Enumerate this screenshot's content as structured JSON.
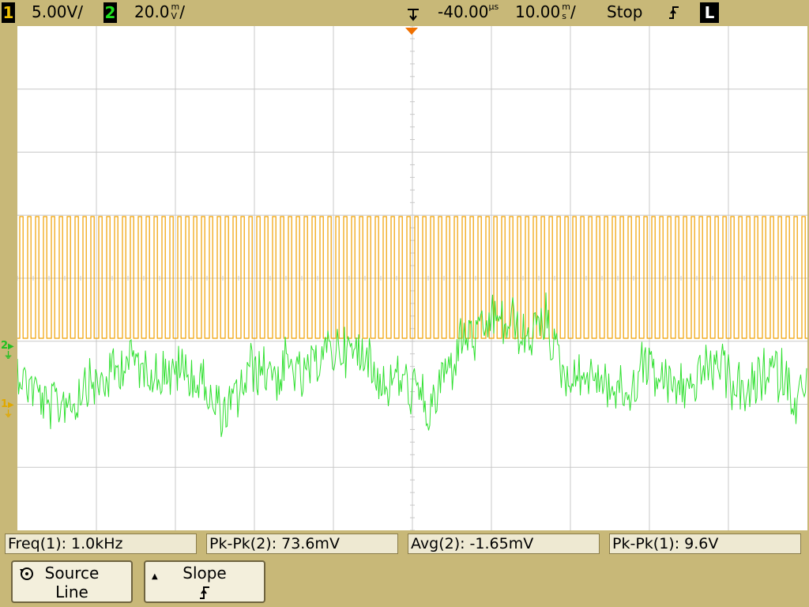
{
  "topbar": {
    "ch1_number": "1",
    "ch1_scale": "5.00V/",
    "ch2_number": "2",
    "ch2_scale_value": "20.0",
    "ch2_scale_unit_top": "m",
    "ch2_scale_unit_bottom": "V",
    "ch2_scale_slash": "/",
    "trigger_delay_value": "-40.00",
    "trigger_delay_unit": "µs",
    "timebase_value": "10.00",
    "timebase_unit_top": "m",
    "timebase_unit_bottom": "s",
    "timebase_slash": "/",
    "run_state": "Stop",
    "trigger_edge_icon": "rising-edge-icon",
    "trigger_edge_glyph": "⨍",
    "trigger_mode": "L"
  },
  "markers": {
    "ch2_ground": "2",
    "ch1_ground": "1"
  },
  "measurements": [
    {
      "label": "Freq(1): 1.0kHz"
    },
    {
      "label": "Pk-Pk(2): 73.6mV"
    },
    {
      "label": "Avg(2): -1.65mV"
    },
    {
      "label": "Pk-Pk(1): 9.6V"
    }
  ],
  "softkeys": {
    "source": {
      "line1": "Source",
      "line2": "Line",
      "icon": "rotate-knob-icon",
      "glyph": "⟲"
    },
    "slope": {
      "line1": "Slope",
      "line2": "⨍",
      "icon": "triangle-up-icon",
      "glyph": "▲"
    }
  },
  "colors": {
    "ch1": "#f0a000",
    "ch2": "#30e030",
    "grid": "#c8c8c8",
    "trigger_marker": "#f07000"
  },
  "waveforms": {
    "ch1": {
      "type": "square",
      "frequency_khz": 1.0,
      "peak_to_peak_v": 9.6
    },
    "ch2": {
      "type": "noise",
      "peak_to_peak_mv": 73.6,
      "average_mv": -1.65
    }
  }
}
